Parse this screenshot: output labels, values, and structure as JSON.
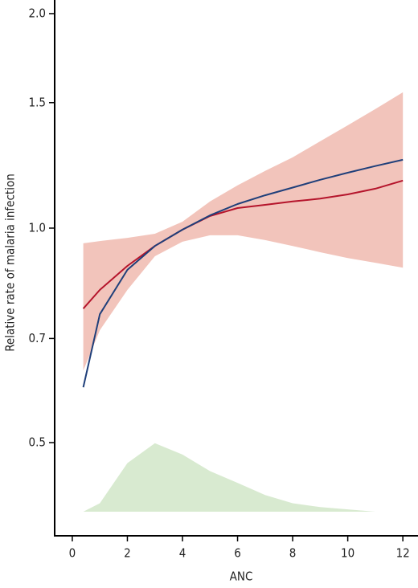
{
  "chart_data": {
    "type": "line",
    "x_label": "ANC",
    "y_label": "Relative rate of malaria infection",
    "log_y": true,
    "xlim": [
      -0.64,
      12.55
    ],
    "ylim": [
      0.37,
      2.09
    ],
    "xticks": [
      0,
      2,
      4,
      6,
      8,
      10,
      12
    ],
    "yticks": [
      0.5,
      0.7,
      {
        "value": 1,
        "label": "1.0"
      },
      1.5,
      {
        "value": 2,
        "label": "2.0"
      }
    ],
    "x": [
      0.4,
      1,
      2,
      3,
      4,
      5,
      6,
      7,
      8,
      9,
      10,
      11,
      12
    ],
    "bands": [
      {
        "color": "#f2c4bb",
        "lower": [
          0.631,
          0.719,
          0.819,
          0.913,
          0.957,
          0.977,
          0.977,
          0.962,
          0.944,
          0.925,
          0.908,
          0.894,
          0.88
        ],
        "upper": [
          0.952,
          0.959,
          0.969,
          0.982,
          1.021,
          1.09,
          1.148,
          1.203,
          1.257,
          1.324,
          1.394,
          1.469,
          1.551
        ]
      },
      {
        "color": "#d8ead0",
        "lower": [
          0.4,
          0.4,
          0.4,
          0.4,
          0.4,
          0.4,
          0.4,
          0.4,
          0.4,
          0.4,
          0.4,
          0.4,
          0.4
        ],
        "upper": [
          0.4,
          0.411,
          0.468,
          0.499,
          0.481,
          0.456,
          0.439,
          0.422,
          0.411,
          0.406,
          0.403,
          0.4,
          0.4
        ]
      }
    ],
    "lines": [
      {
        "color": "#b5142b",
        "values": [
          0.771,
          0.819,
          0.885,
          0.944,
          0.995,
          1.04,
          1.067,
          1.078,
          1.09,
          1.1,
          1.115,
          1.136,
          1.166
        ]
      },
      {
        "color": "#1f3f7a",
        "values": [
          0.598,
          0.757,
          0.874,
          0.944,
          0.995,
          1.042,
          1.081,
          1.112,
          1.14,
          1.169,
          1.196,
          1.222,
          1.247
        ]
      }
    ]
  }
}
